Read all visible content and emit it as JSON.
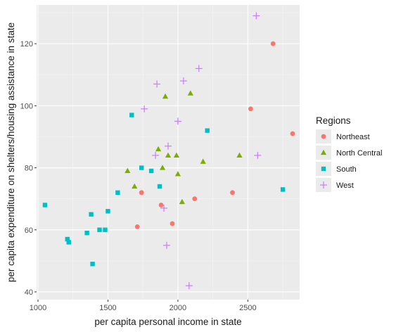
{
  "chart_data": {
    "type": "scatter",
    "xlabel": "per capita personal income in state",
    "ylabel": "per capita expenditure on shelters/housing assistance in state",
    "xlim": [
      990,
      2870
    ],
    "ylim": [
      37.5,
      132.5
    ],
    "x_ticks": [
      1000,
      1500,
      2000,
      2500
    ],
    "y_ticks": [
      40,
      60,
      80,
      100,
      120
    ],
    "grid": true,
    "background": "#ebebeb",
    "legend": {
      "title": "Regions",
      "placement": "right"
    },
    "series": [
      {
        "name": "Northeast",
        "shape": "circle",
        "color": "#f8766d",
        "points": [
          {
            "x": 2680,
            "y": 120
          },
          {
            "x": 2520,
            "y": 99
          },
          {
            "x": 2820,
            "y": 91
          },
          {
            "x": 2390,
            "y": 72
          },
          {
            "x": 1740,
            "y": 72
          },
          {
            "x": 1880,
            "y": 68
          },
          {
            "x": 2120,
            "y": 70
          },
          {
            "x": 1960,
            "y": 62
          },
          {
            "x": 1710,
            "y": 61
          }
        ]
      },
      {
        "name": "North Central",
        "shape": "triangle",
        "color": "#7cae00",
        "points": [
          {
            "x": 1910,
            "y": 103
          },
          {
            "x": 2090,
            "y": 104
          },
          {
            "x": 1860,
            "y": 86
          },
          {
            "x": 1930,
            "y": 84
          },
          {
            "x": 1990,
            "y": 84
          },
          {
            "x": 2440,
            "y": 84
          },
          {
            "x": 1640,
            "y": 79
          },
          {
            "x": 1890,
            "y": 80
          },
          {
            "x": 2000,
            "y": 78
          },
          {
            "x": 2180,
            "y": 82
          },
          {
            "x": 1690,
            "y": 74
          },
          {
            "x": 2030,
            "y": 69
          }
        ]
      },
      {
        "name": "South",
        "shape": "square",
        "color": "#00bfc4",
        "points": [
          {
            "x": 1670,
            "y": 97
          },
          {
            "x": 2210,
            "y": 92
          },
          {
            "x": 1740,
            "y": 80
          },
          {
            "x": 1810,
            "y": 79
          },
          {
            "x": 1870,
            "y": 74
          },
          {
            "x": 2750,
            "y": 73
          },
          {
            "x": 1570,
            "y": 72
          },
          {
            "x": 1050,
            "y": 68
          },
          {
            "x": 1500,
            "y": 66
          },
          {
            "x": 1380,
            "y": 65
          },
          {
            "x": 1440,
            "y": 60
          },
          {
            "x": 1480,
            "y": 60
          },
          {
            "x": 1350,
            "y": 59
          },
          {
            "x": 1210,
            "y": 57
          },
          {
            "x": 1220,
            "y": 56
          },
          {
            "x": 1390,
            "y": 49
          }
        ]
      },
      {
        "name": "West",
        "shape": "cross",
        "color": "#c77cff",
        "points": [
          {
            "x": 2560,
            "y": 129
          },
          {
            "x": 2150,
            "y": 112
          },
          {
            "x": 2040,
            "y": 108
          },
          {
            "x": 1850,
            "y": 107
          },
          {
            "x": 1760,
            "y": 99
          },
          {
            "x": 2000,
            "y": 95
          },
          {
            "x": 1930,
            "y": 87
          },
          {
            "x": 1840,
            "y": 84
          },
          {
            "x": 2570,
            "y": 84
          },
          {
            "x": 1900,
            "y": 67
          },
          {
            "x": 1920,
            "y": 55
          },
          {
            "x": 2080,
            "y": 42
          }
        ]
      }
    ]
  }
}
